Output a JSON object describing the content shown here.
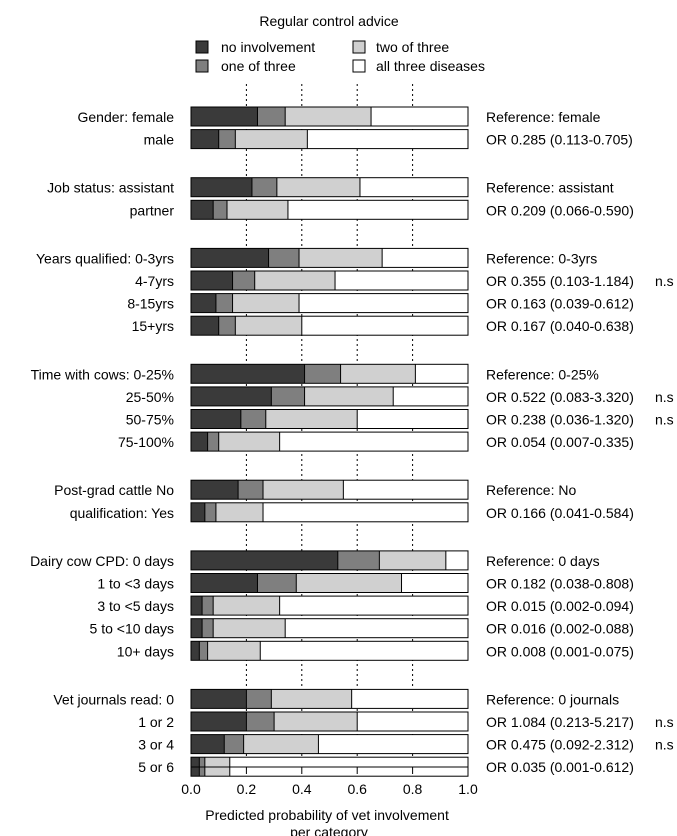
{
  "chart_data": {
    "type": "bar",
    "title": "Regular control advice",
    "xlabel": "Predicted probability of vet involvement per category",
    "xlim": [
      0,
      1
    ],
    "xticks": [
      "0.0",
      "0.2",
      "0.4",
      "0.6",
      "0.8",
      "1.0"
    ],
    "grid": "dotted vertical lines at 0.2, 0.4, 0.6, 0.8",
    "legend_position": "top",
    "series": [
      {
        "name": "no involvement",
        "color": "#3a3a3a"
      },
      {
        "name": "one of three",
        "color": "#7f7f7f"
      },
      {
        "name": "two of three",
        "color": "#d0d0d0"
      },
      {
        "name": "all three diseases",
        "color": "#ffffff"
      }
    ],
    "groups": [
      {
        "rows": [
          {
            "label": "Gender: female",
            "values": [
              0.24,
              0.1,
              0.31,
              0.35
            ],
            "note": "Reference: female",
            "sig": ""
          },
          {
            "label": "male",
            "values": [
              0.1,
              0.06,
              0.26,
              0.58
            ],
            "note": "OR 0.285 (0.113-0.705)",
            "sig": ""
          }
        ]
      },
      {
        "rows": [
          {
            "label": "Job status: assistant",
            "values": [
              0.22,
              0.09,
              0.3,
              0.39
            ],
            "note": "Reference: assistant",
            "sig": ""
          },
          {
            "label": "partner",
            "values": [
              0.08,
              0.05,
              0.22,
              0.65
            ],
            "note": "OR 0.209 (0.066-0.590)",
            "sig": ""
          }
        ]
      },
      {
        "rows": [
          {
            "label": "Years qualified: 0-3yrs",
            "values": [
              0.28,
              0.11,
              0.3,
              0.31
            ],
            "note": "Reference: 0-3yrs",
            "sig": ""
          },
          {
            "label": "4-7yrs",
            "values": [
              0.15,
              0.08,
              0.29,
              0.48
            ],
            "note": "OR 0.355 (0.103-1.184)",
            "sig": "n.s"
          },
          {
            "label": "8-15yrs",
            "values": [
              0.09,
              0.06,
              0.24,
              0.61
            ],
            "note": "OR 0.163 (0.039-0.612)",
            "sig": ""
          },
          {
            "label": "15+yrs",
            "values": [
              0.1,
              0.06,
              0.24,
              0.6
            ],
            "note": "OR 0.167 (0.040-0.638)",
            "sig": ""
          }
        ]
      },
      {
        "rows": [
          {
            "label": "Time with cows: 0-25%",
            "values": [
              0.41,
              0.13,
              0.27,
              0.19
            ],
            "note": "Reference: 0-25%",
            "sig": ""
          },
          {
            "label": "25-50%",
            "values": [
              0.29,
              0.12,
              0.32,
              0.27
            ],
            "note": "OR 0.522 (0.083-3.320)",
            "sig": "n.s"
          },
          {
            "label": "50-75%",
            "values": [
              0.18,
              0.09,
              0.33,
              0.4
            ],
            "note": "OR 0.238 (0.036-1.320)",
            "sig": "n.s"
          },
          {
            "label": "75-100%",
            "values": [
              0.06,
              0.04,
              0.22,
              0.68
            ],
            "note": "OR 0.054 (0.007-0.335)",
            "sig": ""
          }
        ]
      },
      {
        "rows": [
          {
            "label": "Post-grad cattle  No",
            "values": [
              0.17,
              0.09,
              0.29,
              0.45
            ],
            "note": "Reference: No",
            "sig": ""
          },
          {
            "label": "qualification:  Yes",
            "values": [
              0.05,
              0.04,
              0.17,
              0.74
            ],
            "note": "OR 0.166 (0.041-0.584)",
            "sig": ""
          }
        ]
      },
      {
        "rows": [
          {
            "label": "Dairy cow CPD: 0 days",
            "values": [
              0.53,
              0.15,
              0.24,
              0.08
            ],
            "note": "Reference: 0 days",
            "sig": ""
          },
          {
            "label": "1 to <3 days",
            "values": [
              0.24,
              0.14,
              0.38,
              0.24
            ],
            "note": "OR 0.182 (0.038-0.808)",
            "sig": ""
          },
          {
            "label": "3 to <5 days",
            "values": [
              0.04,
              0.04,
              0.24,
              0.68
            ],
            "note": "OR 0.015 (0.002-0.094)",
            "sig": ""
          },
          {
            "label": "5 to <10 days",
            "values": [
              0.04,
              0.04,
              0.26,
              0.66
            ],
            "note": "OR 0.016 (0.002-0.088)",
            "sig": ""
          },
          {
            "label": "10+ days",
            "values": [
              0.03,
              0.03,
              0.19,
              0.75
            ],
            "note": "OR 0.008 (0.001-0.075)",
            "sig": ""
          }
        ]
      },
      {
        "rows": [
          {
            "label": "Vet journals read: 0",
            "values": [
              0.2,
              0.09,
              0.29,
              0.42
            ],
            "note": "Reference: 0 journals",
            "sig": ""
          },
          {
            "label": "1 or 2",
            "values": [
              0.2,
              0.1,
              0.3,
              0.4
            ],
            "note": "OR 1.084 (0.213-5.217)",
            "sig": "n.s"
          },
          {
            "label": "3 or 4",
            "values": [
              0.12,
              0.07,
              0.27,
              0.54
            ],
            "note": "OR 0.475 (0.092-2.312)",
            "sig": "n.s"
          },
          {
            "label": "5 or 6",
            "values": [
              0.03,
              0.02,
              0.09,
              0.86
            ],
            "note": "OR 0.035 (0.001-0.612)",
            "sig": ""
          }
        ]
      }
    ]
  }
}
